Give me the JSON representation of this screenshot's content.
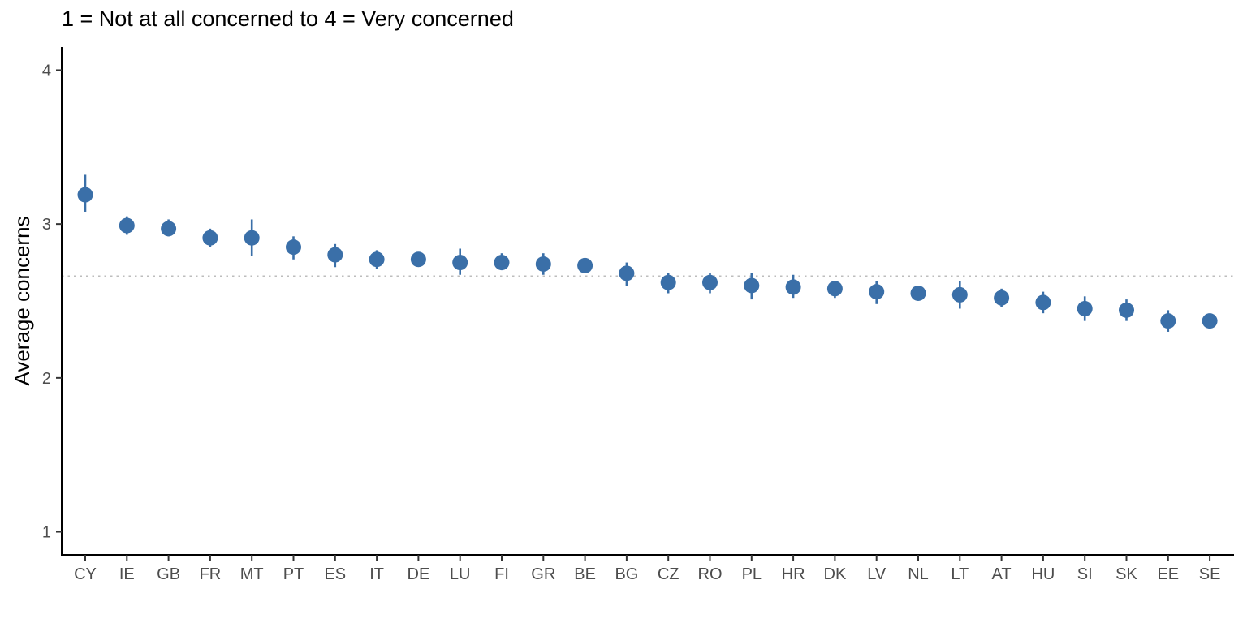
{
  "chart_data": {
    "type": "scatter",
    "title": "1 = Not at all concerned to 4 = Very concerned",
    "xlabel": "",
    "ylabel": "Average concerns",
    "ylim": [
      0.85,
      4.15
    ],
    "yticks": [
      1,
      2,
      3,
      4
    ],
    "reference_line": {
      "y": 2.66,
      "style": "dotted",
      "color": "#bdbdbd"
    },
    "grid": false,
    "marker_color": "#3a6fa8",
    "categories": [
      "CY",
      "IE",
      "GB",
      "FR",
      "MT",
      "PT",
      "ES",
      "IT",
      "DE",
      "LU",
      "FI",
      "GR",
      "BE",
      "BG",
      "CZ",
      "RO",
      "PL",
      "HR",
      "DK",
      "LV",
      "NL",
      "LT",
      "AT",
      "HU",
      "SI",
      "SK",
      "EE",
      "SE"
    ],
    "series": [
      {
        "values": [
          3.19,
          2.99,
          2.97,
          2.91,
          2.91,
          2.85,
          2.8,
          2.77,
          2.77,
          2.75,
          2.75,
          2.74,
          2.73,
          2.68,
          2.62,
          2.62,
          2.6,
          2.59,
          2.58,
          2.56,
          2.55,
          2.54,
          2.52,
          2.49,
          2.45,
          2.44,
          2.37,
          2.37
        ],
        "lower": [
          3.08,
          2.93,
          2.92,
          2.85,
          2.79,
          2.77,
          2.72,
          2.71,
          2.74,
          2.67,
          2.7,
          2.67,
          2.7,
          2.6,
          2.55,
          2.55,
          2.51,
          2.52,
          2.52,
          2.48,
          2.52,
          2.45,
          2.46,
          2.42,
          2.37,
          2.37,
          2.3,
          2.34
        ],
        "upper": [
          3.32,
          3.05,
          3.03,
          2.97,
          3.03,
          2.92,
          2.87,
          2.83,
          2.8,
          2.84,
          2.81,
          2.81,
          2.76,
          2.75,
          2.68,
          2.68,
          2.68,
          2.67,
          2.63,
          2.63,
          2.58,
          2.63,
          2.58,
          2.56,
          2.53,
          2.51,
          2.44,
          2.4
        ]
      }
    ]
  }
}
